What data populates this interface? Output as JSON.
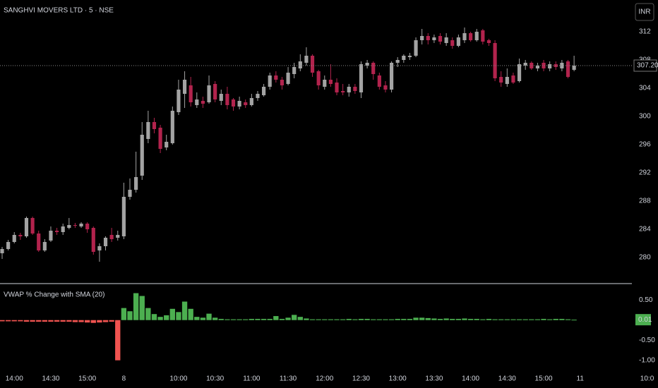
{
  "header": {
    "symbol": "SANGHVI MOVERS LTD · 5 · NSE",
    "currency_button": "INR"
  },
  "chart_data": [
    {
      "type": "candlestick",
      "up_color": "#a3a3a3",
      "down_color": "#b2234d",
      "ylim": [
        276.3,
        316.5
      ],
      "yticks": [
        280,
        284,
        288,
        292,
        296,
        300,
        304,
        308,
        312
      ],
      "xlim": [
        -0.35,
        103.5
      ],
      "xticks": [
        {
          "value": 2,
          "label": "14:00"
        },
        {
          "value": 8,
          "label": "14:30"
        },
        {
          "value": 14,
          "label": "15:00"
        },
        {
          "value": 20,
          "label": "8"
        },
        {
          "value": 29,
          "label": "10:00"
        },
        {
          "value": 35,
          "label": "10:30"
        },
        {
          "value": 41,
          "label": "11:00"
        },
        {
          "value": 47,
          "label": "11:30"
        },
        {
          "value": 53,
          "label": "12:00"
        },
        {
          "value": 59,
          "label": "12:30"
        },
        {
          "value": 65,
          "label": "13:00"
        },
        {
          "value": 71,
          "label": "13:30"
        },
        {
          "value": 77,
          "label": "14:00"
        },
        {
          "value": 83,
          "label": "14:30"
        },
        {
          "value": 89,
          "label": "15:00"
        },
        {
          "value": 95,
          "label": "11"
        },
        {
          "value": 106,
          "label": "10:0"
        }
      ],
      "last_price": {
        "value": 307.2,
        "label": "307.20"
      },
      "open": [
        280.6,
        281.2,
        282.2,
        283.2,
        283,
        285.6,
        283.4,
        281,
        282.4,
        283.8,
        283.6,
        284.2,
        284.6,
        284.4,
        284.8,
        284.2,
        281,
        281.6,
        283.2,
        282.8,
        283,
        288.6,
        289.6,
        291.6,
        296.8,
        299.2,
        298.4,
        295.6,
        296.2,
        300.6,
        303.2,
        304.4,
        301.6,
        302.2,
        302,
        304.6,
        302.2,
        303.2,
        302.4,
        301.4,
        302,
        301.6,
        302.6,
        303,
        304.2,
        305.8,
        305.2,
        304.6,
        306,
        306.8,
        307.6,
        308.6,
        306.4,
        304.2,
        305.2,
        304.8,
        303.6,
        303.4,
        304.2,
        303.4,
        307.2,
        307.6,
        305.8,
        304.4,
        303.8,
        307.6,
        308,
        308.4,
        308.6,
        310.8,
        311.4,
        310.8,
        311.4,
        310.4,
        310.8,
        310,
        310.8,
        311.8,
        310.8,
        312.2,
        310.8,
        310.4,
        305.6,
        304.6,
        305.8,
        305,
        307.2,
        307.6,
        306.8,
        307.6,
        306.8,
        307.4,
        306.8,
        307.8,
        306.6
      ],
      "high": [
        281.5,
        282.5,
        283.6,
        283.5,
        285.8,
        285.8,
        283.8,
        282.6,
        284.4,
        284.2,
        284.8,
        285.6,
        284.9,
        285,
        285,
        284.4,
        282,
        283,
        284.2,
        283.8,
        290.6,
        291.2,
        295,
        299.2,
        300.8,
        299.8,
        298.8,
        297.4,
        301.4,
        305.2,
        306.4,
        305.6,
        303.4,
        302.8,
        305.8,
        305,
        303.8,
        304.2,
        302.6,
        302.8,
        302.4,
        303.2,
        303.6,
        304.6,
        306.2,
        306.4,
        305.6,
        307,
        307.6,
        308.8,
        309.8,
        308.8,
        306.6,
        305.8,
        307.4,
        305.4,
        304.6,
        304.6,
        304.6,
        307.8,
        308,
        307.8,
        306.2,
        305,
        307.8,
        308.4,
        308.8,
        309,
        311.2,
        312.4,
        311.8,
        311.6,
        311.8,
        311.8,
        311.2,
        311.6,
        312.6,
        312,
        312.4,
        312.4,
        311,
        310.8,
        306.4,
        306.8,
        306.2,
        308.2,
        308,
        307.8,
        307.6,
        308,
        307.8,
        307.8,
        308,
        308,
        308.6
      ],
      "low": [
        279.8,
        281,
        282,
        282.5,
        282.8,
        283.2,
        280.8,
        280.8,
        282.2,
        283.2,
        283.2,
        284,
        284.2,
        284.2,
        283.5,
        280.4,
        279.4,
        281,
        282.2,
        282.4,
        282.6,
        288.2,
        289.2,
        291,
        296.2,
        297.6,
        294.8,
        295.2,
        296,
        300.2,
        301.2,
        301.4,
        301.2,
        301.2,
        301.8,
        302,
        301.6,
        301,
        300.8,
        301,
        301.2,
        301.4,
        302.2,
        302.8,
        303.8,
        304.8,
        303.8,
        304.4,
        305.4,
        306.4,
        307.2,
        305.6,
        303.8,
        303.8,
        304.2,
        303,
        303,
        302.8,
        303.2,
        302.6,
        306.8,
        305.2,
        303.8,
        303.4,
        303.4,
        307,
        307.6,
        308,
        308.4,
        310.2,
        310.2,
        310.4,
        310.2,
        310,
        309.6,
        309.8,
        310.4,
        310.6,
        310.6,
        310.2,
        310,
        305,
        304.2,
        304.2,
        304.6,
        304.8,
        306.6,
        306.6,
        306.4,
        306.4,
        306.4,
        306.6,
        306.4,
        305.4,
        306.4
      ],
      "close": [
        281.2,
        282.2,
        283.2,
        283,
        285.6,
        283.4,
        281,
        282.2,
        283.8,
        283.6,
        284.4,
        284.6,
        284.5,
        284.8,
        284,
        280.8,
        281.6,
        282.8,
        282.6,
        283.2,
        288.6,
        289.6,
        291.4,
        297.4,
        299.2,
        298.2,
        295.4,
        296.4,
        300.8,
        303.8,
        305.2,
        302,
        302.4,
        301.8,
        304.4,
        302.4,
        303.2,
        301.6,
        301.4,
        302.2,
        301.6,
        302.6,
        303.2,
        304.2,
        305.8,
        305.2,
        304.4,
        306.2,
        307,
        307.8,
        308.6,
        306.2,
        304.4,
        305.2,
        304.6,
        303.4,
        303.4,
        304.2,
        303.6,
        307.4,
        307.6,
        306,
        304.2,
        303.8,
        307.6,
        308,
        308.6,
        308.6,
        310.8,
        311.4,
        310.8,
        311.2,
        310.6,
        311.2,
        310,
        311.2,
        311.8,
        310.8,
        312,
        310.6,
        310.4,
        305.4,
        304.8,
        305.6,
        304.8,
        307.4,
        307.6,
        306.8,
        307.2,
        306.8,
        307.4,
        307,
        307.6,
        305.6,
        307.2
      ]
    },
    {
      "type": "bar",
      "title": "VWAP % Change with SMA (20)",
      "pos_color": "#4caf50",
      "neg_color": "#f05350",
      "ylim": [
        -1.25,
        0.89
      ],
      "yticks": [
        {
          "value": 0.5,
          "label": "0.50"
        },
        {
          "value": -0.5,
          "label": "-0.50"
        },
        {
          "value": -1,
          "label": "-1.00"
        }
      ],
      "last_value": 0.01,
      "values": [
        -0.03,
        -0.03,
        -0.03,
        -0.03,
        -0.04,
        -0.04,
        -0.04,
        -0.04,
        -0.04,
        -0.04,
        -0.04,
        -0.04,
        -0.05,
        -0.05,
        -0.06,
        -0.07,
        -0.06,
        -0.05,
        -0.04,
        -1.0,
        0.3,
        0.22,
        0.67,
        0.6,
        0.3,
        0.15,
        0.08,
        0.12,
        0.28,
        0.2,
        0.46,
        0.28,
        0.08,
        0.06,
        0.16,
        0.06,
        0.03,
        0.02,
        0.02,
        0.02,
        0.02,
        0.03,
        0.03,
        0.03,
        0.03,
        0.1,
        0.03,
        0.06,
        0.13,
        0.08,
        0.04,
        0.02,
        0.02,
        0.02,
        0.02,
        0.02,
        0.02,
        0.03,
        0.02,
        0.03,
        0.03,
        0.02,
        0.02,
        0.02,
        0.02,
        0.03,
        0.03,
        0.03,
        0.06,
        0.06,
        0.05,
        0.04,
        0.03,
        0.04,
        0.03,
        0.03,
        0.04,
        0.03,
        0.03,
        0.02,
        0.03,
        0.02,
        0.02,
        0.02,
        0.02,
        0.02,
        0.02,
        0.02,
        0.02,
        0.03,
        0.02,
        0.03,
        0.03,
        0.02,
        0.01
      ]
    }
  ]
}
